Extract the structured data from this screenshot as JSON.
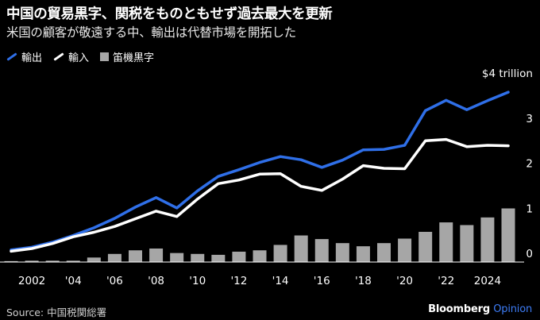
{
  "header": {
    "title": "中国の貿易黒字、関税をものともせず過去最大を更新",
    "subtitle": "米国の顧客が敬遠する中、輸出は代替市場を開拓した"
  },
  "legend": [
    {
      "label": "輸出",
      "color": "#2f6fe8",
      "kind": "line"
    },
    {
      "label": "輸入",
      "color": "#ffffff",
      "kind": "line"
    },
    {
      "label": "笛機黒字",
      "color": "#a6a6a6",
      "kind": "bar"
    }
  ],
  "footer": {
    "source": "Source: 中国税関総署",
    "brand_primary": "Bloomberg",
    "brand_secondary": "Opinion"
  },
  "chart_data": {
    "type": "line",
    "x": [
      2001,
      2002,
      2003,
      2004,
      2005,
      2006,
      2007,
      2008,
      2009,
      2010,
      2011,
      2012,
      2013,
      2014,
      2015,
      2016,
      2017,
      2018,
      2019,
      2020,
      2021,
      2022,
      2023,
      2024,
      2025
    ],
    "series": [
      {
        "name": "輸出",
        "kind": "line",
        "color": "#2f6fe8",
        "values": [
          0.27,
          0.33,
          0.44,
          0.59,
          0.76,
          0.97,
          1.22,
          1.43,
          1.2,
          1.58,
          1.9,
          2.05,
          2.21,
          2.34,
          2.27,
          2.1,
          2.26,
          2.49,
          2.5,
          2.59,
          3.36,
          3.59,
          3.38,
          3.58,
          3.77
        ]
      },
      {
        "name": "輸入",
        "kind": "line",
        "color": "#ffffff",
        "values": [
          0.24,
          0.3,
          0.41,
          0.56,
          0.66,
          0.79,
          0.96,
          1.13,
          1.01,
          1.4,
          1.74,
          1.82,
          1.95,
          1.96,
          1.68,
          1.59,
          1.84,
          2.14,
          2.08,
          2.07,
          2.69,
          2.72,
          2.56,
          2.59,
          2.58
        ]
      },
      {
        "name": "笛機黒字",
        "kind": "bar",
        "color": "#a6a6a6",
        "values": [
          0.02,
          0.03,
          0.03,
          0.03,
          0.1,
          0.18,
          0.26,
          0.3,
          0.2,
          0.18,
          0.16,
          0.23,
          0.26,
          0.38,
          0.59,
          0.51,
          0.42,
          0.35,
          0.42,
          0.52,
          0.67,
          0.88,
          0.82,
          0.99,
          1.19
        ]
      }
    ],
    "ylim": [
      0,
      4
    ],
    "yticks": [
      0,
      1,
      2,
      3,
      4
    ],
    "ytick_labels": [
      "0",
      "1",
      "2",
      "3",
      "$4 trillion"
    ],
    "xtick_years": [
      2002,
      2004,
      2006,
      2008,
      2010,
      2012,
      2014,
      2016,
      2018,
      2020,
      2022,
      2024
    ],
    "xtick_labels": [
      "2002",
      "'04",
      "'06",
      "'08",
      "'10",
      "'12",
      "'14",
      "'16",
      "'18",
      "'20",
      "'22",
      "2024"
    ],
    "grid": false,
    "legend_position": "top-left"
  }
}
